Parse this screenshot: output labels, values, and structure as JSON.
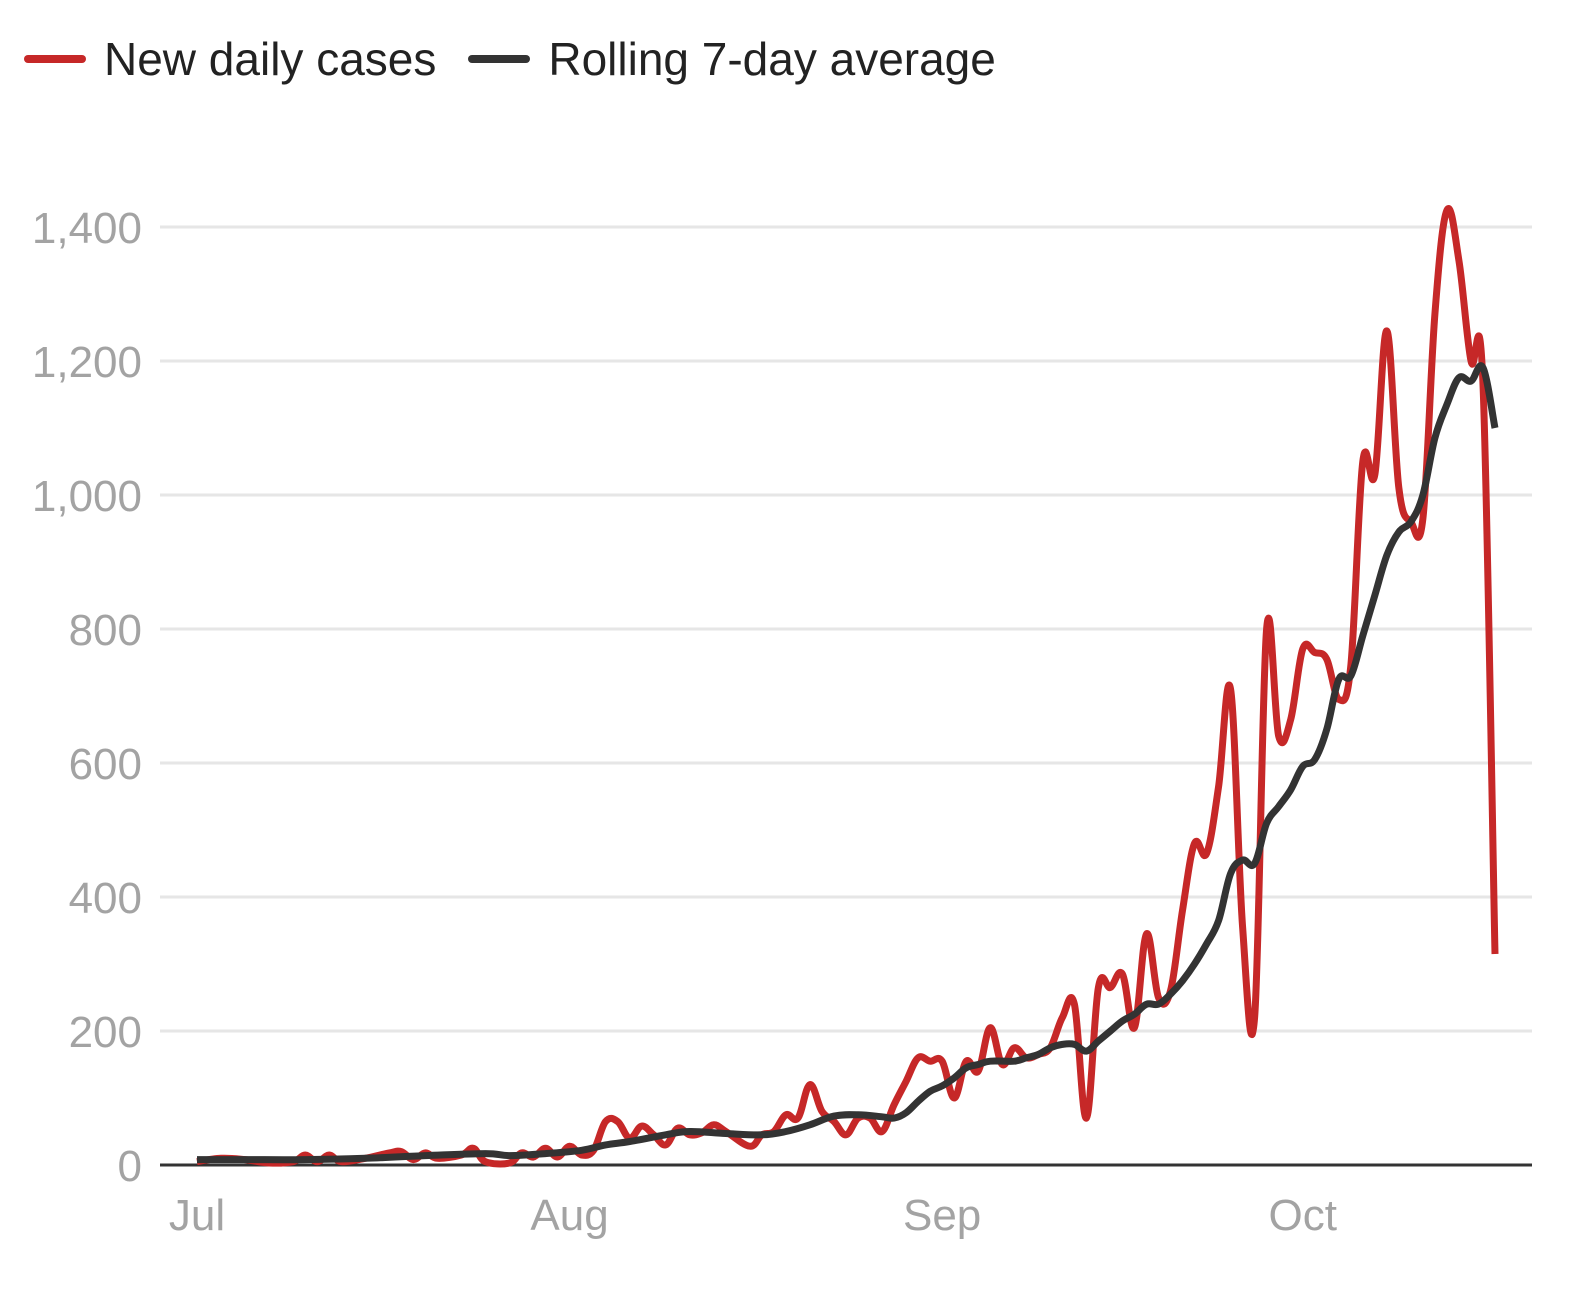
{
  "legend": {
    "items": [
      {
        "label": "New daily cases",
        "color": "#c62828"
      },
      {
        "label": "Rolling 7-day average",
        "color": "#333333"
      }
    ]
  },
  "chart_data": {
    "type": "line",
    "ylim": [
      0,
      1400
    ],
    "yticks": [
      {
        "value": 0,
        "label": "0"
      },
      {
        "value": 200,
        "label": "200"
      },
      {
        "value": 400,
        "label": "400"
      },
      {
        "value": 600,
        "label": "600"
      },
      {
        "value": 800,
        "label": "800"
      },
      {
        "value": 1000,
        "label": "1,000"
      },
      {
        "value": 1200,
        "label": "1,200"
      },
      {
        "value": 1400,
        "label": "1,400"
      }
    ],
    "xticks": [
      {
        "day": 1,
        "label": "Jul"
      },
      {
        "day": 32,
        "label": "Aug"
      },
      {
        "day": 63,
        "label": "Sep"
      },
      {
        "day": 93,
        "label": "Oct"
      }
    ],
    "grid": true,
    "legend_position": "top-left",
    "series": [
      {
        "name": "New daily cases",
        "color": "#c62828",
        "points": [
          [
            1,
            5
          ],
          [
            3,
            10
          ],
          [
            5,
            8
          ],
          [
            7,
            3
          ],
          [
            9,
            5
          ],
          [
            10,
            15
          ],
          [
            11,
            5
          ],
          [
            12,
            15
          ],
          [
            13,
            5
          ],
          [
            15,
            10
          ],
          [
            17,
            18
          ],
          [
            18,
            20
          ],
          [
            19,
            8
          ],
          [
            20,
            18
          ],
          [
            21,
            10
          ],
          [
            23,
            15
          ],
          [
            24,
            25
          ],
          [
            25,
            5
          ],
          [
            27,
            3
          ],
          [
            28,
            18
          ],
          [
            29,
            12
          ],
          [
            30,
            25
          ],
          [
            31,
            12
          ],
          [
            32,
            28
          ],
          [
            33,
            15
          ],
          [
            34,
            22
          ],
          [
            35,
            65
          ],
          [
            36,
            65
          ],
          [
            37,
            40
          ],
          [
            38,
            58
          ],
          [
            39,
            45
          ],
          [
            40,
            30
          ],
          [
            41,
            55
          ],
          [
            42,
            45
          ],
          [
            43,
            48
          ],
          [
            44,
            60
          ],
          [
            45,
            50
          ],
          [
            47,
            28
          ],
          [
            48,
            45
          ],
          [
            49,
            50
          ],
          [
            50,
            75
          ],
          [
            51,
            70
          ],
          [
            52,
            120
          ],
          [
            53,
            80
          ],
          [
            54,
            65
          ],
          [
            55,
            45
          ],
          [
            56,
            70
          ],
          [
            57,
            70
          ],
          [
            58,
            50
          ],
          [
            59,
            90
          ],
          [
            60,
            125
          ],
          [
            61,
            160
          ],
          [
            62,
            155
          ],
          [
            63,
            155
          ],
          [
            64,
            100
          ],
          [
            65,
            155
          ],
          [
            66,
            140
          ],
          [
            67,
            205
          ],
          [
            68,
            150
          ],
          [
            69,
            175
          ],
          [
            70,
            160
          ],
          [
            71,
            165
          ],
          [
            72,
            175
          ],
          [
            73,
            220
          ],
          [
            74,
            240
          ],
          [
            75,
            70
          ],
          [
            76,
            265
          ],
          [
            77,
            265
          ],
          [
            78,
            285
          ],
          [
            79,
            205
          ],
          [
            80,
            345
          ],
          [
            81,
            250
          ],
          [
            82,
            260
          ],
          [
            83,
            380
          ],
          [
            84,
            480
          ],
          [
            85,
            465
          ],
          [
            86,
            565
          ],
          [
            87,
            710
          ],
          [
            88,
            355
          ],
          [
            89,
            220
          ],
          [
            90,
            800
          ],
          [
            91,
            640
          ],
          [
            92,
            665
          ],
          [
            93,
            770
          ],
          [
            94,
            765
          ],
          [
            95,
            755
          ],
          [
            96,
            695
          ],
          [
            97,
            745
          ],
          [
            98,
            1050
          ],
          [
            99,
            1030
          ],
          [
            100,
            1245
          ],
          [
            101,
            1010
          ],
          [
            102,
            960
          ],
          [
            103,
            965
          ],
          [
            104,
            1270
          ],
          [
            105,
            1425
          ],
          [
            106,
            1350
          ],
          [
            107,
            1200
          ],
          [
            108,
            1165
          ],
          [
            109,
            315
          ]
        ]
      },
      {
        "name": "Rolling 7-day average",
        "color": "#333333",
        "points": [
          [
            1,
            8
          ],
          [
            5,
            8
          ],
          [
            10,
            8
          ],
          [
            15,
            10
          ],
          [
            20,
            14
          ],
          [
            25,
            17
          ],
          [
            27,
            14
          ],
          [
            30,
            17
          ],
          [
            33,
            22
          ],
          [
            35,
            30
          ],
          [
            37,
            35
          ],
          [
            40,
            45
          ],
          [
            42,
            50
          ],
          [
            45,
            47
          ],
          [
            48,
            45
          ],
          [
            50,
            50
          ],
          [
            52,
            60
          ],
          [
            54,
            73
          ],
          [
            56,
            75
          ],
          [
            58,
            72
          ],
          [
            59,
            70
          ],
          [
            60,
            78
          ],
          [
            61,
            95
          ],
          [
            62,
            110
          ],
          [
            63,
            118
          ],
          [
            64,
            130
          ],
          [
            65,
            145
          ],
          [
            66,
            150
          ],
          [
            67,
            155
          ],
          [
            69,
            155
          ],
          [
            70,
            160
          ],
          [
            71,
            165
          ],
          [
            72,
            175
          ],
          [
            73,
            180
          ],
          [
            74,
            180
          ],
          [
            75,
            170
          ],
          [
            76,
            185
          ],
          [
            77,
            200
          ],
          [
            78,
            215
          ],
          [
            79,
            225
          ],
          [
            80,
            240
          ],
          [
            81,
            240
          ],
          [
            82,
            255
          ],
          [
            83,
            275
          ],
          [
            84,
            300
          ],
          [
            85,
            330
          ],
          [
            86,
            365
          ],
          [
            87,
            435
          ],
          [
            88,
            455
          ],
          [
            89,
            450
          ],
          [
            90,
            510
          ],
          [
            91,
            535
          ],
          [
            92,
            560
          ],
          [
            93,
            595
          ],
          [
            94,
            605
          ],
          [
            95,
            650
          ],
          [
            96,
            725
          ],
          [
            97,
            730
          ],
          [
            98,
            790
          ],
          [
            99,
            850
          ],
          [
            100,
            910
          ],
          [
            101,
            945
          ],
          [
            102,
            960
          ],
          [
            103,
            1000
          ],
          [
            104,
            1085
          ],
          [
            105,
            1135
          ],
          [
            106,
            1175
          ],
          [
            107,
            1170
          ],
          [
            108,
            1190
          ],
          [
            109,
            1100
          ]
        ]
      }
    ]
  }
}
